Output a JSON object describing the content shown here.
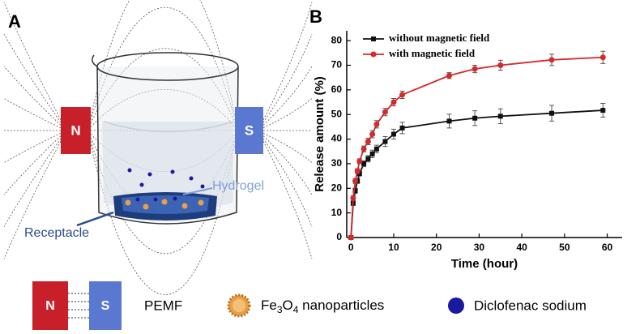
{
  "panel_a": {
    "label": "A",
    "magnet_north": "N",
    "magnet_south": "S",
    "hydrogel": "Hydrogel",
    "receptacle": "Receptacle"
  },
  "legend": {
    "pemf": "PEMF",
    "nanoparticles": [
      "Fe",
      "3",
      "O",
      "4",
      " nanoparticles"
    ],
    "drug": "Diclofenac sodium"
  },
  "chart_data": {
    "type": "line",
    "panel_label": "B",
    "xlabel": "Time (hour)",
    "ylabel": "Release amount (%)",
    "x": [
      0,
      0.5,
      1,
      1.5,
      2,
      3,
      4,
      5,
      6,
      8,
      10,
      12,
      23,
      29,
      35,
      47,
      59
    ],
    "series": [
      {
        "name": "without magnetic field",
        "color": "#111111",
        "marker": "square",
        "values": [
          0,
          14,
          19,
          23,
          26,
          30,
          32,
          34,
          36,
          39,
          42,
          44.5,
          47.3,
          48.5,
          49.3,
          50.5,
          51.7
        ],
        "errors": [
          0,
          1,
          1,
          1,
          1,
          1.2,
          1.3,
          1.5,
          1.5,
          2,
          2,
          2.3,
          2.8,
          3,
          3,
          3.2,
          2.8
        ]
      },
      {
        "name": "with magnetic field",
        "color": "#d42a2a",
        "marker": "circle",
        "values": [
          0,
          16,
          23,
          27,
          31,
          36,
          39,
          42,
          46,
          51,
          55,
          58,
          65.8,
          68.5,
          70,
          72.2,
          73.2
        ],
        "errors": [
          0,
          1,
          1,
          1,
          1,
          1.2,
          1.3,
          1.5,
          1.5,
          1.5,
          1.5,
          1.5,
          1.2,
          1.5,
          2,
          2.3,
          2.5
        ]
      }
    ],
    "xlim": [
      -1,
      63.5
    ],
    "ylim": [
      0,
      84
    ],
    "xticks": [
      0,
      10,
      20,
      30,
      40,
      50,
      60
    ],
    "yticks": [
      0,
      10,
      20,
      30,
      40,
      50,
      60,
      70,
      80
    ],
    "legend": "upper left",
    "grid": false
  }
}
